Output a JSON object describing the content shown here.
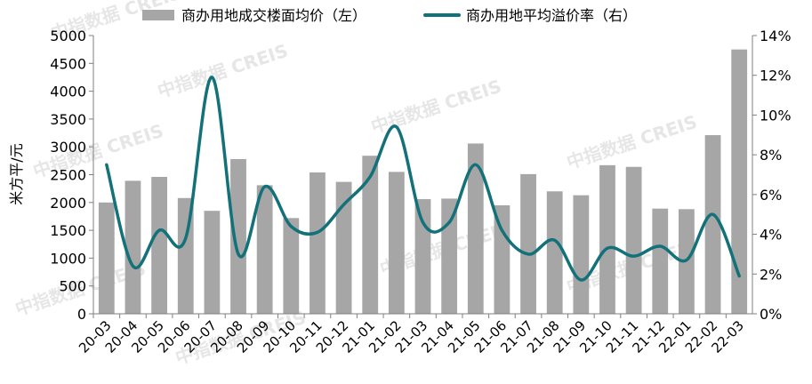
{
  "chart_data": {
    "type": "bar+line",
    "categories": [
      "20-03",
      "20-04",
      "20-05",
      "20-06",
      "20-07",
      "20-08",
      "20-09",
      "20-10",
      "20-11",
      "20-12",
      "21-01",
      "21-02",
      "21-03",
      "21-04",
      "21-05",
      "21-06",
      "21-07",
      "21-08",
      "21-09",
      "21-10",
      "21-11",
      "21-12",
      "22-01",
      "22-02",
      "22-03"
    ],
    "series": [
      {
        "name": "商办用地成交楼面均价（左）",
        "type": "bar",
        "axis": "left",
        "color": "#a6a6a6",
        "values": [
          2000,
          2390,
          2460,
          2080,
          1850,
          2780,
          2310,
          1720,
          2540,
          2370,
          2840,
          2550,
          2060,
          2070,
          3060,
          1950,
          2510,
          2200,
          2130,
          2670,
          2640,
          1890,
          1880,
          3210,
          4750
        ]
      },
      {
        "name": "商办用地平均溢价率（右）",
        "type": "line",
        "axis": "right",
        "color": "#137179",
        "values": [
          7.5,
          2.4,
          4.2,
          3.8,
          11.9,
          3.0,
          6.4,
          4.4,
          4.1,
          5.5,
          6.9,
          9.4,
          4.6,
          4.6,
          7.5,
          4.2,
          3.0,
          3.7,
          1.7,
          3.3,
          2.9,
          3.4,
          2.7,
          5.0,
          1.9
        ]
      }
    ],
    "ylabel": "米方平/元",
    "ylim": [
      0,
      5000
    ],
    "yticks": [
      "0",
      "500",
      "1000",
      "1500",
      "2000",
      "2500",
      "3000",
      "3500",
      "4000",
      "4500",
      "5000"
    ],
    "y2lim": [
      0,
      14
    ],
    "y2ticks": [
      "0%",
      "2%",
      "4%",
      "6%",
      "8%",
      "10%",
      "12%",
      "14%"
    ],
    "legend_position": "top",
    "grid": false
  },
  "watermark": "中指数据 CREIS"
}
